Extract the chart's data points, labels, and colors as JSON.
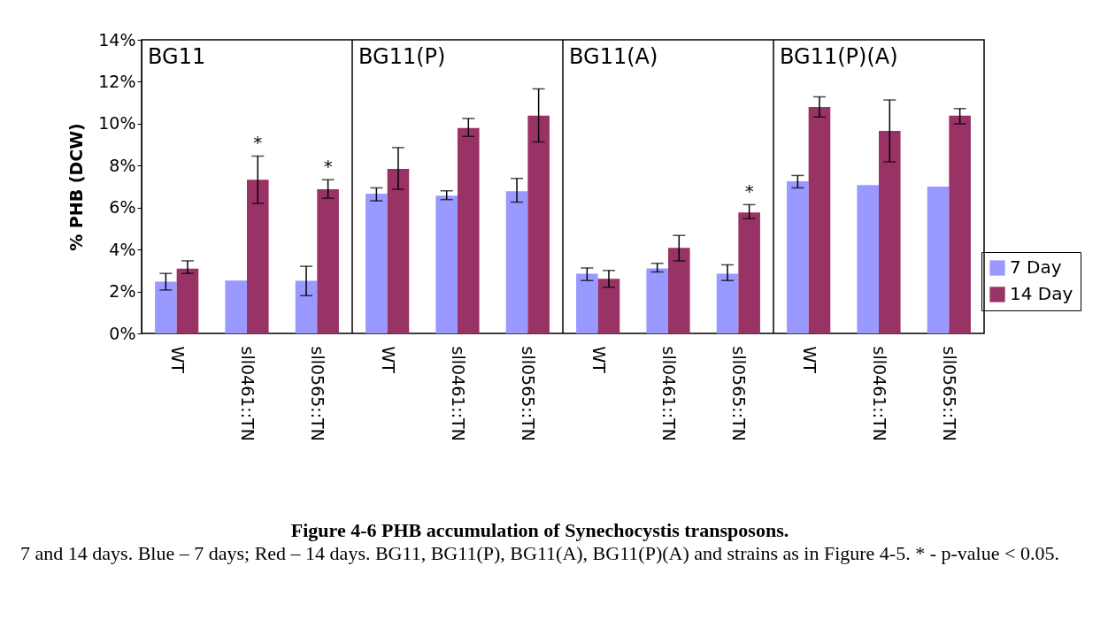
{
  "chart_data": [
    {
      "type": "bar",
      "title": "BG11",
      "ylabel": "% PHB (DCW)",
      "categories": [
        "WT",
        "sll0461::TN",
        "sll0565::TN"
      ],
      "ylim": [
        0,
        14
      ],
      "yticks": [
        {
          "value": 0,
          "label": "0%"
        },
        {
          "value": 2,
          "label": "2%"
        },
        {
          "value": 4,
          "label": "4%"
        },
        {
          "value": 6,
          "label": "6%"
        },
        {
          "value": 8,
          "label": "8%"
        },
        {
          "value": 10,
          "label": "10%"
        },
        {
          "value": 12,
          "label": "12%"
        },
        {
          "value": 14,
          "label": "14%"
        }
      ],
      "series": [
        {
          "color": "#9999ff",
          "values": [
            2.47,
            2.52,
            2.51
          ],
          "errors": [
            [
              2.07,
              2.86
            ],
            null,
            [
              1.8,
              3.2
            ]
          ]
        },
        {
          "color": "#993366",
          "values": [
            3.09,
            7.33,
            6.87
          ],
          "errors": [
            [
              2.86,
              3.46
            ],
            [
              6.2,
              8.46
            ],
            [
              6.45,
              7.33
            ]
          ]
        }
      ],
      "annotations": [
        {
          "text": "*",
          "x": "sll0461::TN",
          "y": 8.46
        },
        {
          "text": "*",
          "x": "sll0565::TN",
          "y": 7.33
        },
        "Figure 4-6 PHB accumulation of Synechocystis transposons.",
        "7 and 14 days.   Blue – 7 days; Red – 14 days.  BG11, BG11(P), BG11(A), BG11(P)(A) and strains as in Figure 4-5. * - p-value < 0.05."
      ]
    },
    {
      "type": "bar",
      "title": "BG11(P)",
      "categories": [
        "WT",
        "sll0461::TN",
        "sll0565::TN"
      ],
      "ylim": [
        0,
        14
      ],
      "tick_labels": "x",
      "series": [
        {
          "color": "#9999ff",
          "values": [
            6.66,
            6.57,
            6.78
          ],
          "errors": [
            [
              6.32,
              6.94
            ],
            [
              6.38,
              6.8
            ],
            [
              6.26,
              7.39
            ]
          ]
        },
        {
          "color": "#993366",
          "values": [
            7.84,
            9.79,
            10.38
          ],
          "errors": [
            [
              6.87,
              8.86
            ],
            [
              9.39,
              10.25
            ],
            [
              9.13,
              11.66
            ]
          ]
        }
      ]
    },
    {
      "type": "bar",
      "title": "BG11(A)",
      "categories": [
        "WT",
        "sll0461::TN",
        "sll0565::TN"
      ],
      "ylim": [
        0,
        14
      ],
      "tick_labels": "x",
      "series": [
        {
          "color": "#9999ff",
          "values": [
            2.85,
            3.1,
            2.85
          ],
          "errors": [
            [
              2.52,
              3.12
            ],
            [
              2.93,
              3.34
            ],
            [
              2.52,
              3.27
            ]
          ]
        },
        {
          "color": "#993366",
          "values": [
            2.6,
            4.08,
            5.77
          ],
          "errors": [
            [
              2.2,
              3.0
            ],
            [
              3.46,
              4.67
            ],
            [
              5.47,
              6.14
            ]
          ]
        }
      ],
      "annotations": [
        {
          "text": "*",
          "x": "sll0565::TN",
          "y": 6.14
        }
      ]
    },
    {
      "type": "bar",
      "title": "BG11(P)(A)",
      "categories": [
        "WT",
        "sll0461::TN",
        "sll0565::TN"
      ],
      "ylim": [
        0,
        14
      ],
      "tick_labels": "x",
      "legend": "bottom right",
      "series": [
        {
          "name": "7 Day",
          "color": "#9999ff",
          "values": [
            7.25,
            7.07,
            7.0
          ],
          "errors": [
            [
              6.94,
              7.53
            ],
            null,
            null
          ]
        },
        {
          "name": "14 Day",
          "color": "#993366",
          "values": [
            10.79,
            9.66,
            10.38
          ],
          "errors": [
            [
              10.32,
              11.28
            ],
            [
              8.18,
              11.13
            ],
            [
              9.99,
              10.72
            ]
          ]
        }
      ]
    }
  ]
}
